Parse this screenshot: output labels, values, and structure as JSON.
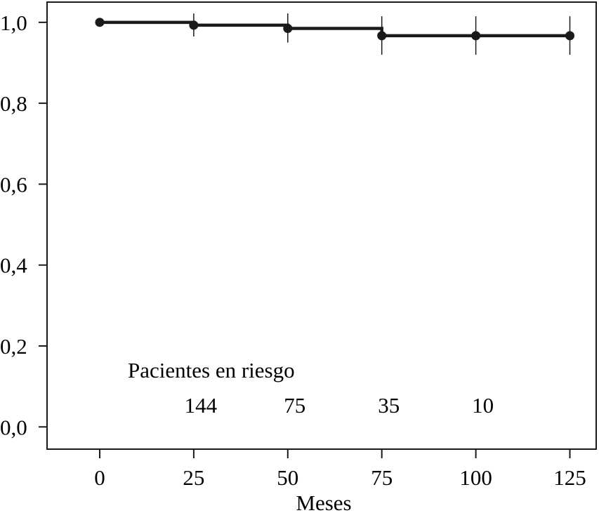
{
  "chart_data": {
    "type": "line",
    "title": "",
    "xlabel": "Meses",
    "ylabel": "",
    "xlim": [
      -14,
      132
    ],
    "ylim": [
      -0.055,
      1.05
    ],
    "x_ticks": [
      0,
      25,
      50,
      75,
      100,
      125
    ],
    "x_tick_labels": [
      "0",
      "25",
      "50",
      "75",
      "100",
      "125"
    ],
    "y_ticks": [
      0.0,
      0.2,
      0.4,
      0.6,
      0.8,
      1.0
    ],
    "y_tick_labels": [
      "0,0",
      "0,2",
      "0,4",
      "0,6",
      "0,8",
      "1,0"
    ],
    "grid": false,
    "series": [
      {
        "step": true,
        "color": "#1a1a1a",
        "points": [
          {
            "x": 0,
            "y": 1.0,
            "ci": [
              1.0,
              1.0
            ]
          },
          {
            "x": 25,
            "y": 0.993,
            "ci": [
              0.965,
              1.022
            ]
          },
          {
            "x": 50,
            "y": 0.985,
            "ci": [
              0.95,
              1.022
            ]
          },
          {
            "x": 75,
            "y": 0.967,
            "ci": [
              0.92,
              1.015
            ]
          },
          {
            "x": 100,
            "y": 0.967,
            "ci": [
              0.92,
              1.015
            ]
          },
          {
            "x": 125,
            "y": 0.967,
            "ci": [
              0.92,
              1.015
            ]
          }
        ]
      }
    ],
    "at_risk": {
      "label": "Pacientes en riesgo",
      "entries": [
        {
          "x": 25,
          "value": "144"
        },
        {
          "x": 50,
          "value": "75"
        },
        {
          "x": 75,
          "value": "35"
        },
        {
          "x": 100,
          "value": "10"
        }
      ]
    }
  }
}
